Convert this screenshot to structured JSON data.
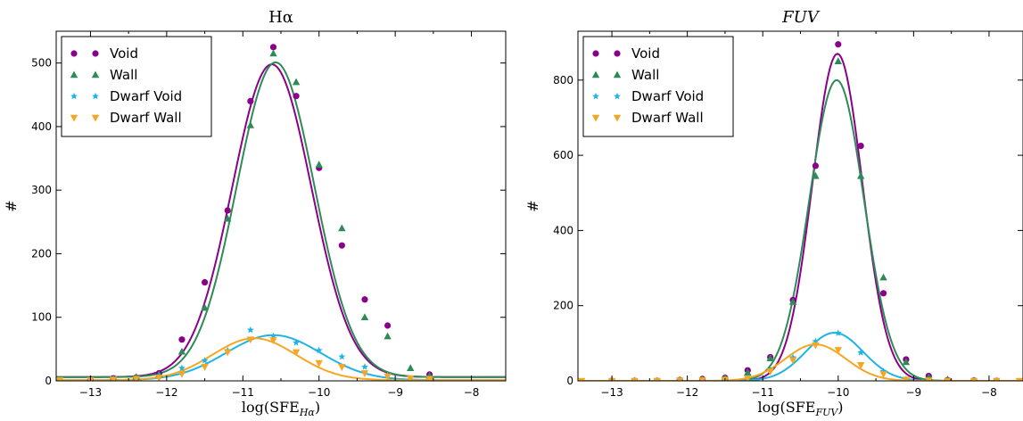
{
  "chart_data": [
    {
      "type": "scatter",
      "title": "Hα",
      "xlabel": "log(SFE",
      "xlabel_sub": "Hα",
      "xlabel_close": ")",
      "ylabel": "#",
      "xlim": [
        -13.45,
        -7.55
      ],
      "ylim": [
        0,
        550
      ],
      "xticks": [
        -13,
        -12,
        -11,
        -10,
        -9,
        -8
      ],
      "xtick_labels": [
        "−13",
        "−12",
        "−11",
        "−10",
        "−9",
        "−8"
      ],
      "yticks": [
        0,
        100,
        200,
        300,
        400,
        500
      ],
      "ytick_labels": [
        "0",
        "100",
        "200",
        "300",
        "400",
        "500"
      ],
      "legend_position": "top-left",
      "grid": false,
      "series": [
        {
          "name": "Void",
          "color": "#8B008B",
          "marker": "circle",
          "x": [
            -13.0,
            -12.7,
            -12.4,
            -12.1,
            -11.8,
            -11.5,
            -11.2,
            -10.9,
            -10.6,
            -10.3,
            -10.0,
            -9.7,
            -9.4,
            -9.1,
            -8.55
          ],
          "y": [
            2,
            4,
            5,
            12,
            65,
            155,
            268,
            440,
            525,
            448,
            335,
            213,
            128,
            87,
            10
          ]
        },
        {
          "name": "Wall",
          "color": "#2E8B57",
          "marker": "triangle-up",
          "x": [
            -13.0,
            -12.7,
            -12.4,
            -12.1,
            -11.8,
            -11.5,
            -11.2,
            -10.9,
            -10.6,
            -10.3,
            -10.0,
            -9.7,
            -9.4,
            -9.1,
            -8.8,
            -8.55
          ],
          "y": [
            2,
            3,
            6,
            10,
            46,
            115,
            255,
            402,
            515,
            470,
            340,
            240,
            100,
            70,
            20,
            8
          ]
        },
        {
          "name": "Dwarf Void",
          "color": "#1EB4E6",
          "marker": "star",
          "x": [
            -13.4,
            -13.0,
            -12.7,
            -12.4,
            -12.1,
            -11.8,
            -11.5,
            -11.2,
            -10.9,
            -10.6,
            -10.3,
            -10.0,
            -9.7,
            -9.4,
            -9.1
          ],
          "y": [
            1,
            1,
            2,
            3,
            8,
            20,
            32,
            48,
            80,
            70,
            60,
            48,
            38,
            22,
            9
          ]
        },
        {
          "name": "Dwarf Wall",
          "color": "#F5A623",
          "marker": "triangle-down",
          "x": [
            -13.4,
            -13.0,
            -12.7,
            -12.4,
            -12.1,
            -11.8,
            -11.5,
            -11.2,
            -10.9,
            -10.6,
            -10.3,
            -10.0,
            -9.7,
            -9.4,
            -9.1,
            -8.8,
            -8.55
          ],
          "y": [
            1,
            1,
            2,
            3,
            5,
            11,
            22,
            45,
            65,
            64,
            45,
            28,
            22,
            12,
            7,
            4,
            3
          ]
        }
      ],
      "fits": [
        {
          "series": "Void",
          "color": "#8B008B",
          "amplitude": 492,
          "mean": -10.62,
          "sigma": 0.52,
          "offset": 6
        },
        {
          "series": "Wall",
          "color": "#2E8B57",
          "amplitude": 495,
          "mean": -10.57,
          "sigma": 0.51,
          "offset": 6
        },
        {
          "series": "Dwarf Void",
          "color": "#1EB4E6",
          "amplitude": 71,
          "mean": -10.6,
          "sigma": 0.62,
          "offset": 1
        },
        {
          "series": "Dwarf Wall",
          "color": "#F5A623",
          "amplitude": 66,
          "mean": -10.85,
          "sigma": 0.55,
          "offset": 1
        }
      ]
    },
    {
      "type": "scatter",
      "title": "FUV",
      "xlabel": "log(SFE",
      "xlabel_sub": "FUV",
      "xlabel_close": ")",
      "ylabel": "#",
      "xlim": [
        -13.45,
        -7.55
      ],
      "ylim": [
        0,
        930
      ],
      "xticks": [
        -13,
        -12,
        -11,
        -10,
        -9,
        -8
      ],
      "xtick_labels": [
        "−13",
        "−12",
        "−11",
        "−10",
        "−9",
        "−8"
      ],
      "yticks": [
        0,
        200,
        400,
        600,
        800
      ],
      "ytick_labels": [
        "0",
        "200",
        "400",
        "600",
        "800"
      ],
      "legend_position": "top-left",
      "grid": false,
      "series": [
        {
          "name": "Void",
          "color": "#8B008B",
          "marker": "circle",
          "x": [
            -13.0,
            -12.7,
            -12.4,
            -12.1,
            -11.8,
            -11.5,
            -11.2,
            -10.9,
            -10.6,
            -10.3,
            -10.0,
            -9.7,
            -9.4,
            -9.1,
            -8.8,
            -8.55,
            -8.2,
            -7.9
          ],
          "y": [
            0,
            0,
            0,
            2,
            5,
            8,
            28,
            63,
            215,
            572,
            895,
            625,
            233,
            57,
            13,
            2,
            1,
            0
          ]
        },
        {
          "name": "Wall",
          "color": "#2E8B57",
          "marker": "triangle-up",
          "x": [
            -13.0,
            -12.7,
            -12.4,
            -12.1,
            -11.8,
            -11.5,
            -11.2,
            -10.9,
            -10.6,
            -10.3,
            -10.0,
            -9.7,
            -9.4,
            -9.1,
            -8.8,
            -8.55,
            -8.2
          ],
          "y": [
            0,
            0,
            0,
            2,
            4,
            8,
            22,
            60,
            210,
            545,
            850,
            545,
            275,
            50,
            10,
            3,
            1
          ]
        },
        {
          "name": "Dwarf Void",
          "color": "#1EB4E6",
          "marker": "star",
          "x": [
            -13.0,
            -12.7,
            -12.4,
            -12.1,
            -11.8,
            -11.5,
            -11.2,
            -10.9,
            -10.6,
            -10.3,
            -10.0,
            -9.7,
            -9.4,
            -9.1
          ],
          "y": [
            0,
            0,
            0,
            1,
            2,
            3,
            8,
            30,
            62,
            105,
            127,
            75,
            25,
            5
          ]
        },
        {
          "name": "Dwarf Wall",
          "color": "#F5A623",
          "marker": "triangle-down",
          "x": [
            -13.4,
            -13.0,
            -12.7,
            -12.4,
            -12.1,
            -11.8,
            -11.5,
            -11.2,
            -10.9,
            -10.6,
            -10.3,
            -10.0,
            -9.7,
            -9.4,
            -9.1,
            -8.8,
            -8.55,
            -8.2,
            -7.9,
            -7.6
          ],
          "y": [
            0,
            0,
            0,
            0,
            1,
            2,
            3,
            6,
            25,
            55,
            95,
            82,
            42,
            18,
            3,
            1,
            0,
            0,
            0,
            0
          ]
        }
      ],
      "fits": [
        {
          "series": "Void",
          "color": "#8B008B",
          "amplitude": 870,
          "mean": -10.01,
          "sigma": 0.33,
          "offset": 0
        },
        {
          "series": "Wall",
          "color": "#2E8B57",
          "amplitude": 800,
          "mean": -10.02,
          "sigma": 0.36,
          "offset": 0
        },
        {
          "series": "Dwarf Void",
          "color": "#1EB4E6",
          "amplitude": 128,
          "mean": -10.05,
          "sigma": 0.38,
          "offset": 0
        },
        {
          "series": "Dwarf Wall",
          "color": "#F5A623",
          "amplitude": 97,
          "mean": -10.3,
          "sigma": 0.4,
          "offset": 0
        }
      ]
    }
  ]
}
